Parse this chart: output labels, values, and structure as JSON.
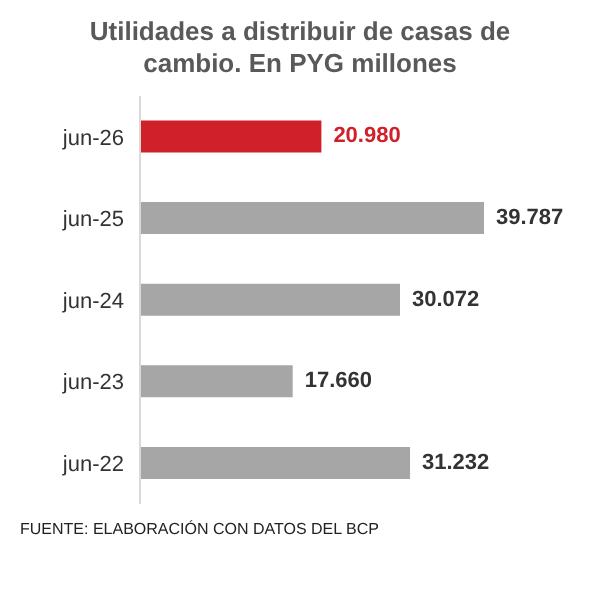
{
  "chart_data": {
    "type": "bar",
    "orientation": "horizontal",
    "title": "Utilidades a distribuir de casas de cambio. En PYG millones",
    "categories": [
      "jun-26",
      "jun-25",
      "jun-24",
      "jun-23",
      "jun-22"
    ],
    "values": [
      20980,
      39787,
      30072,
      17660,
      31232
    ],
    "value_labels": [
      "20.980",
      "39.787",
      "30.072",
      "17.660",
      "31.232"
    ],
    "colors": [
      "#d0202a",
      "#a6a6a6",
      "#a6a6a6",
      "#a6a6a6",
      "#a6a6a6"
    ],
    "annotations": [
      "FUENTE: ELABORACIÓN CON DATOS DEL BCP"
    ],
    "grid": false
  }
}
